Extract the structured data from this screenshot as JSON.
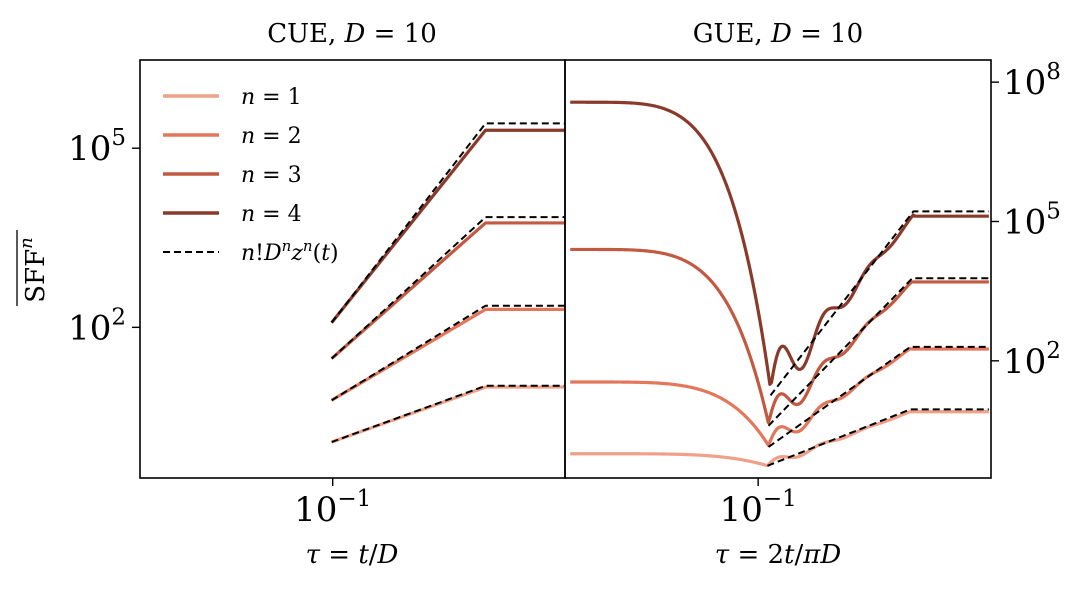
{
  "chart_data": [
    {
      "panel": "left",
      "type": "line",
      "title": {
        "prefix": "CUE, ",
        "math_var": "D",
        "math_rest": " = 10"
      },
      "xlabel": {
        "var": "τ",
        "rest": " = ",
        "var2": "t",
        "sep": "/",
        "var3": "D"
      },
      "ylabel": {
        "base": "SFF",
        "sup": "n"
      },
      "xscale": "log",
      "yscale": "log",
      "xlim": [
        0.0402,
        0.3
      ],
      "ylim": [
        0.3,
        3000000
      ],
      "x_ticks": [
        {
          "value": 0.1,
          "base": "10",
          "exp": "−1"
        }
      ],
      "y_ticks": [
        {
          "value": 100,
          "base": "10",
          "exp": "2"
        },
        {
          "value": 100000,
          "base": "10",
          "exp": "5"
        }
      ],
      "y_axis_side": "left",
      "legend": {
        "position": "top-left",
        "entries": [
          {
            "var": "n",
            "rest": " = 1"
          },
          {
            "var": "n",
            "rest": " = 2"
          },
          {
            "var": "n",
            "rest": " = 3"
          },
          {
            "var": "n",
            "rest": " = 4"
          },
          {
            "label_parts": [
              "n",
              "!",
              "D",
              "n",
              "z",
              "n",
              "(",
              "t",
              ")"
            ],
            "style": "dashed"
          }
        ]
      },
      "series": [
        {
          "name": "n = 1",
          "color": "#f0a088",
          "x": [
            0.0995,
            0.3
          ],
          "y": [
            1.2,
            10
          ],
          "plateau_x": 0.206,
          "plateau_y": 10
        },
        {
          "name": "n = 2",
          "color": "#e4765a",
          "x": [
            0.0995,
            0.3
          ],
          "y": [
            6,
            200
          ],
          "plateau_x": 0.206,
          "plateau_y": 200
        },
        {
          "name": "n = 3",
          "color": "#c15a40",
          "x": [
            0.0995,
            0.3
          ],
          "y": [
            30,
            5600
          ],
          "plateau_x": 0.206,
          "plateau_y": 5600
        },
        {
          "name": "n = 4",
          "color": "#8a3a2a",
          "x": [
            0.0995,
            0.3
          ],
          "y": [
            120,
            200000
          ],
          "plateau_x": 0.206,
          "plateau_y": 200000
        }
      ],
      "reference": [
        {
          "color": "#000000",
          "style": "dashed",
          "start": [
            0.0995,
            1.2
          ],
          "knee": [
            0.206,
            10.5
          ],
          "end": [
            0.3,
            10.5
          ]
        },
        {
          "color": "#000000",
          "style": "dashed",
          "start": [
            0.0995,
            6
          ],
          "knee": [
            0.206,
            230
          ],
          "end": [
            0.3,
            230
          ]
        },
        {
          "color": "#000000",
          "style": "dashed",
          "start": [
            0.0995,
            30
          ],
          "knee": [
            0.206,
            7000
          ],
          "end": [
            0.3,
            7000
          ]
        },
        {
          "color": "#000000",
          "style": "dashed",
          "start": [
            0.0995,
            120
          ],
          "knee": [
            0.206,
            260000
          ],
          "end": [
            0.3,
            260000
          ]
        }
      ]
    },
    {
      "panel": "right",
      "type": "line",
      "title": {
        "prefix": "GUE, ",
        "math_var": "D",
        "math_rest": " = 10"
      },
      "xlabel": {
        "var": "τ",
        "rest": " = 2",
        "var2": "t",
        "sep": "/",
        "var3": "πD"
      },
      "xscale": "log",
      "yscale": "log",
      "xlim": [
        0.0402,
        0.3
      ],
      "ylim": [
        0.3,
        300000000
      ],
      "x_ticks": [
        {
          "value": 0.1,
          "base": "10",
          "exp": "−1"
        }
      ],
      "y_ticks": [
        {
          "value": 100,
          "base": "10",
          "exp": "2"
        },
        {
          "value": 100000,
          "base": "10",
          "exp": "5"
        },
        {
          "value": 100000000,
          "base": "10",
          "exp": "8"
        }
      ],
      "y_axis_side": "right",
      "series": [
        {
          "name": "n = 1",
          "color": "#f0a088",
          "early": 1.0,
          "dip_x": 0.1045,
          "dip_y": 0.55,
          "late": 8,
          "plateau_x": 0.205,
          "wiggles": 2,
          "wiggle_amp": 0.12
        },
        {
          "name": "n = 2",
          "color": "#e4765a",
          "early": 35,
          "dip_x": 0.105,
          "dip_y": 1.5,
          "late": 180,
          "plateau_x": 0.205,
          "wiggles": 2,
          "wiggle_amp": 0.3
        },
        {
          "name": "n = 3",
          "color": "#c15a40",
          "early": 25000,
          "dip_x": 0.105,
          "dip_y": 4.5,
          "late": 5000,
          "plateau_x": 0.207,
          "wiggles": 2,
          "wiggle_amp": 0.5
        },
        {
          "name": "n = 4",
          "color": "#8a3a2a",
          "early": 37000000,
          "dip_x": 0.106,
          "dip_y": 25,
          "late": 130000,
          "plateau_x": 0.208,
          "wiggles": 2,
          "wiggle_amp": 0.8
        }
      ],
      "reference": [
        {
          "color": "#000000",
          "style": "dashed",
          "start": [
            0.1045,
            0.55
          ],
          "knee": [
            0.205,
            9
          ],
          "end": [
            0.297,
            9
          ]
        },
        {
          "color": "#000000",
          "style": "dashed",
          "start": [
            0.105,
            1.4
          ],
          "knee": [
            0.205,
            200
          ],
          "end": [
            0.297,
            200
          ]
        },
        {
          "color": "#000000",
          "style": "dashed",
          "start": [
            0.105,
            4
          ],
          "knee": [
            0.207,
            6000
          ],
          "end": [
            0.297,
            6000
          ]
        },
        {
          "color": "#000000",
          "style": "dashed",
          "start": [
            0.106,
            18
          ],
          "knee": [
            0.208,
            165000
          ],
          "end": [
            0.297,
            165000
          ]
        }
      ]
    }
  ]
}
